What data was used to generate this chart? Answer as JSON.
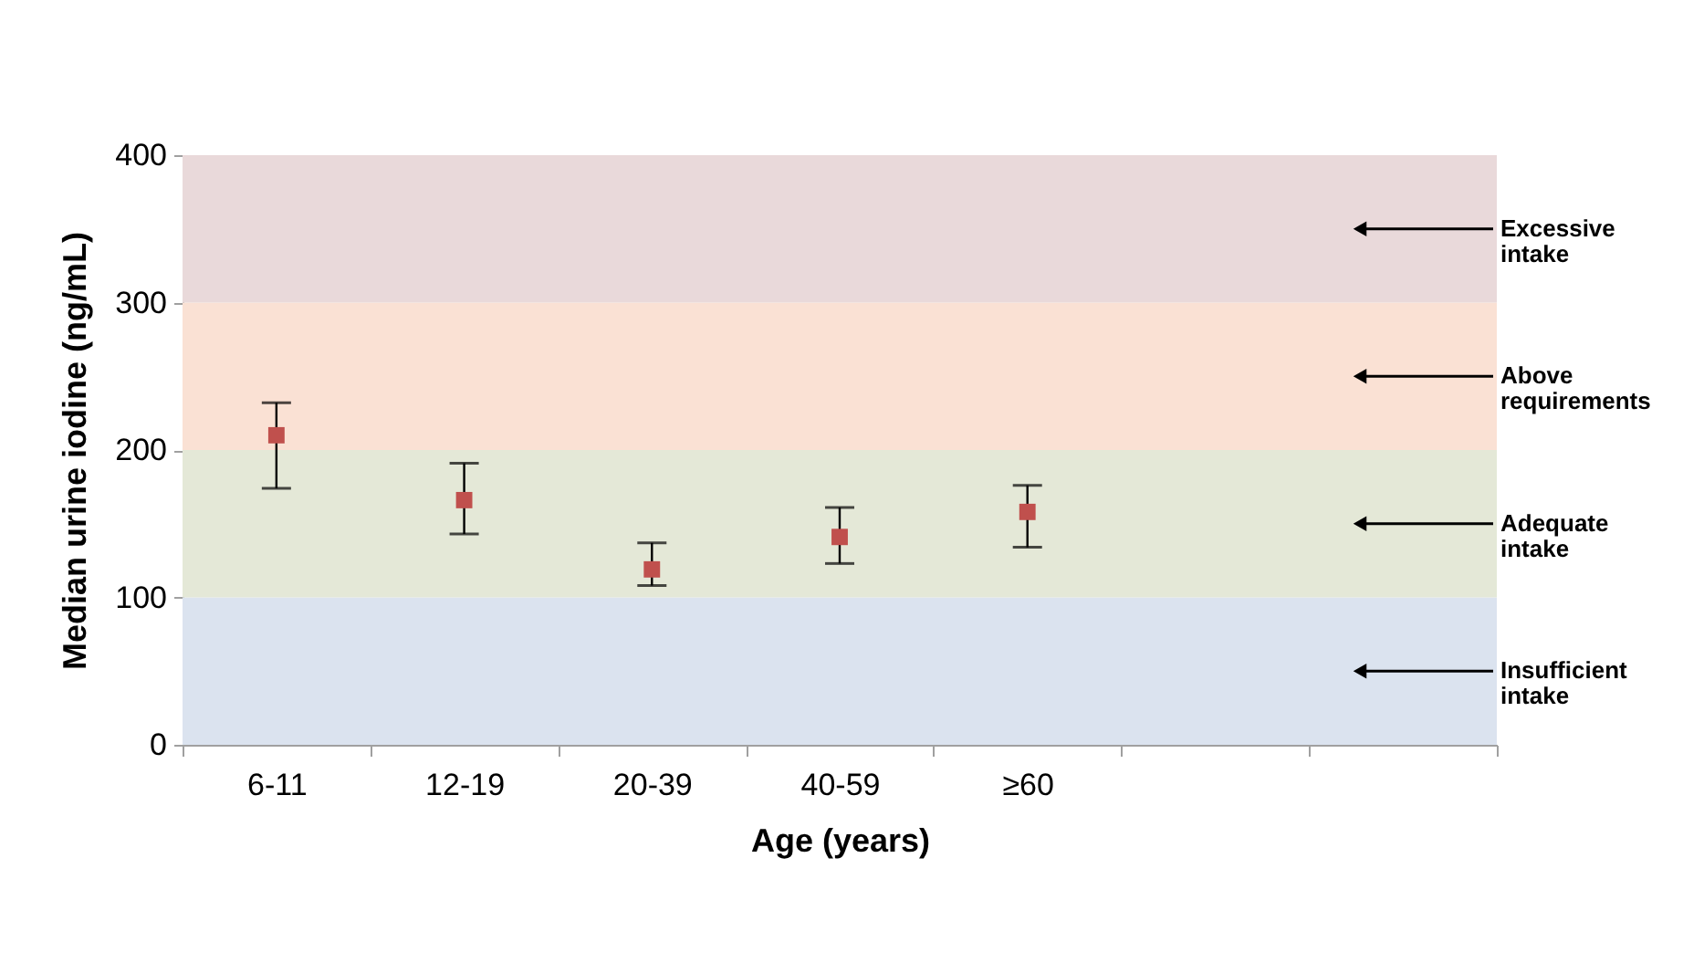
{
  "chart_data": {
    "type": "scatter",
    "xlabel": "Age (years)",
    "ylabel": "Median urine iodine (ng/mL)",
    "categories": [
      "6-11",
      "12-19",
      "20-39",
      "40-59",
      "≥60",
      null,
      null
    ],
    "series": [
      {
        "color": "#c0504d",
        "values": [
          210,
          166,
          119,
          141,
          158,
          null,
          null
        ],
        "errors": [
          [
            174,
            232
          ],
          [
            143,
            191
          ],
          [
            108,
            137
          ],
          [
            123,
            161
          ],
          [
            134,
            176
          ],
          null,
          null
        ]
      }
    ],
    "marker": "square",
    "ylim": [
      0,
      400
    ],
    "yticks": [
      0,
      100,
      200,
      300,
      400
    ],
    "bands": [
      {
        "axis": "y",
        "from": 0,
        "to": 100,
        "label": "Insufficient intake",
        "color": "#dbe3ef"
      },
      {
        "axis": "y",
        "from": 100,
        "to": 200,
        "label": "Adequate intake",
        "color": "#e4e8d7"
      },
      {
        "axis": "y",
        "from": 200,
        "to": 300,
        "label": "Above requirements",
        "color": "#fae1d4"
      },
      {
        "axis": "y",
        "from": 300,
        "to": 400,
        "label": "Excessive intake",
        "color": "#e9d9da"
      }
    ]
  }
}
